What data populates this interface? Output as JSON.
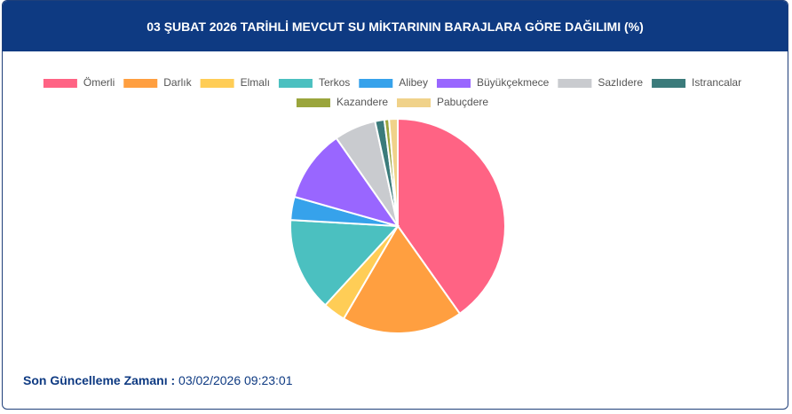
{
  "chart_data": {
    "type": "pie",
    "title": "03 ŞUBAT 2026 TARİHLİ MEVCUT SU MİKTARININ BARAJLARA GÖRE DAĞILIMI (%)",
    "categories": [
      "Ömerli",
      "Darlık",
      "Elmalı",
      "Terkos",
      "Alibey",
      "Büyükçekmece",
      "Sazlıdere",
      "Istrancalar",
      "Kazandere",
      "Pabuçdere"
    ],
    "values": [
      40.2,
      18.2,
      3.4,
      14.1,
      3.5,
      10.9,
      6.3,
      1.4,
      0.7,
      1.3
    ],
    "colors": [
      "#ff6384",
      "#ff9f40",
      "#ffcd56",
      "#4bc0c0",
      "#36a2eb",
      "#9966ff",
      "#c9cbcf",
      "#3b7b7b",
      "#9aa53c",
      "#f0d28a"
    ],
    "legend": "top"
  },
  "footer": {
    "label": "Son Güncelleme Zamanı :",
    "value": "03/02/2026 09:23:01"
  }
}
